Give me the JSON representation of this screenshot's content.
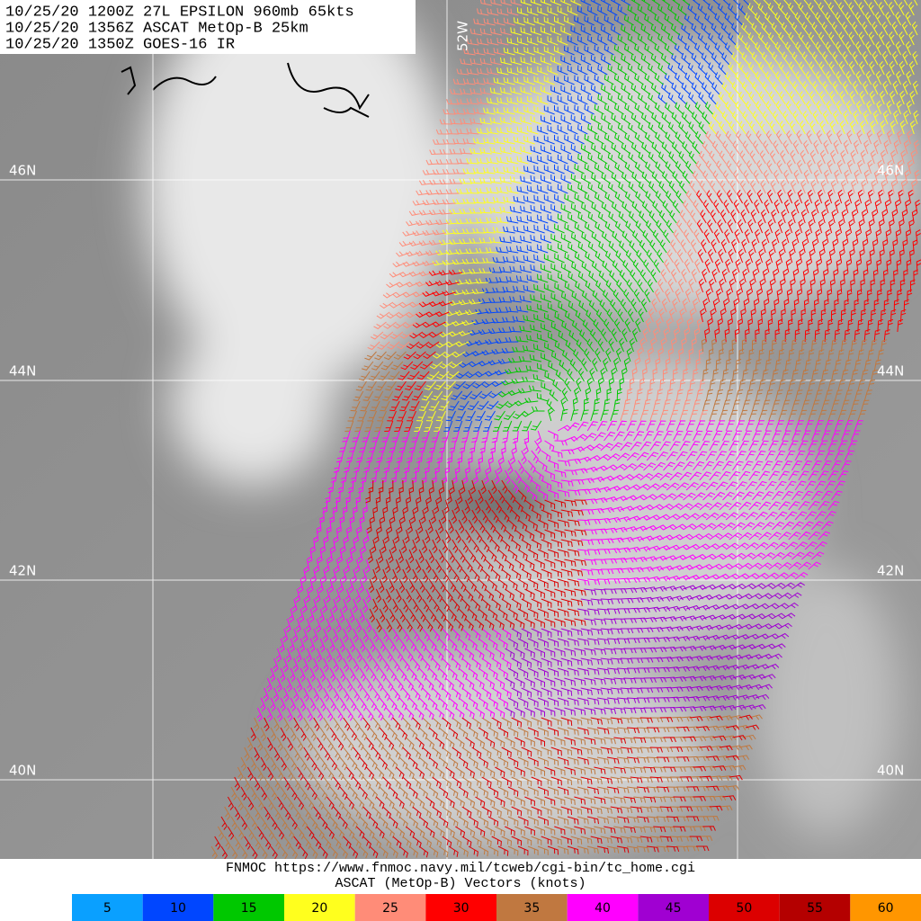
{
  "header": {
    "lines": [
      "10/25/20 1200Z  27L EPSILON 960mb 65kts",
      "10/25/20 1356Z  ASCAT MetOp-B 25km",
      "10/25/20 1350Z  GOES-16 IR"
    ]
  },
  "grid": {
    "longitude_label": "52W",
    "latitude_labels": [
      "46N",
      "44N",
      "42N",
      "40N"
    ]
  },
  "footer": {
    "source": "FNMOC https://www.fnmoc.navy.mil/tcweb/cgi-bin/tc_home.cgi",
    "caption": "ASCAT (MetOp-B) Vectors (knots)"
  },
  "legend": [
    {
      "value": 5,
      "color": "#0aa0ff"
    },
    {
      "value": 10,
      "color": "#0046ff"
    },
    {
      "value": 15,
      "color": "#00c800"
    },
    {
      "value": 20,
      "color": "#ffff1e"
    },
    {
      "value": 25,
      "color": "#ff8c78"
    },
    {
      "value": 30,
      "color": "#ff0000"
    },
    {
      "value": 35,
      "color": "#c07840"
    },
    {
      "value": 40,
      "color": "#ff00ff"
    },
    {
      "value": 45,
      "color": "#a000d2"
    },
    {
      "value": 50,
      "color": "#dc0000"
    },
    {
      "value": 55,
      "color": "#b40000"
    },
    {
      "value": 60,
      "color": "#ff9600"
    }
  ]
}
